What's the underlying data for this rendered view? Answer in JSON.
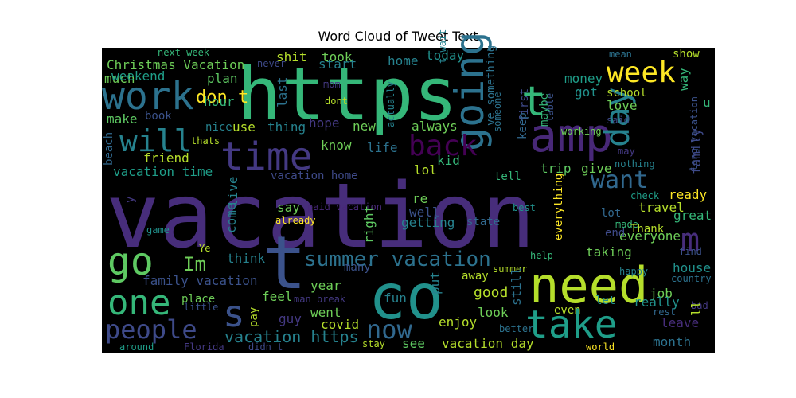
{
  "chart_data": {
    "type": "wordcloud",
    "title": "Word Cloud of Tweet Text",
    "background": "#000000",
    "palette": "viridis",
    "words": [
      {
        "text": "vacation",
        "color": "#472d7b"
      },
      {
        "text": "https",
        "color": "#35b779"
      },
      {
        "text": "t",
        "color": "#3b528b"
      },
      {
        "text": "co",
        "color": "#21918c"
      },
      {
        "text": "need",
        "color": "#b5de2b"
      },
      {
        "text": "amp",
        "color": "#482878"
      },
      {
        "text": "going",
        "color": "#2c728e"
      },
      {
        "text": "time",
        "color": "#443983"
      },
      {
        "text": "work",
        "color": "#2c728e"
      },
      {
        "text": "take",
        "color": "#1f9e89"
      },
      {
        "text": "go",
        "color": "#5ec962"
      },
      {
        "text": "one",
        "color": "#35b779"
      },
      {
        "text": "people",
        "color": "#3e4a89"
      },
      {
        "text": "now",
        "color": "#31688e"
      },
      {
        "text": "back",
        "color": "#440154"
      },
      {
        "text": "will",
        "color": "#26828e"
      },
      {
        "text": "week",
        "color": "#fde725"
      },
      {
        "text": "day",
        "color": "#26828e"
      },
      {
        "text": "want",
        "color": "#31688e"
      },
      {
        "text": "m",
        "color": "#472d7b"
      },
      {
        "text": "s",
        "color": "#3b528b"
      },
      {
        "text": "t",
        "color": "#35b779"
      },
      {
        "text": "Im",
        "color": "#6ece58"
      },
      {
        "text": "summer vacation",
        "color": "#2c728e"
      },
      {
        "text": "vacation https",
        "color": "#26828e"
      },
      {
        "text": "Christmas Vacation",
        "color": "#6ece58"
      },
      {
        "text": "vacation time",
        "color": "#1f9e89"
      },
      {
        "text": "family vacation",
        "color": "#3b528b"
      },
      {
        "text": "vacation home",
        "color": "#3e4a89"
      },
      {
        "text": "vacation day",
        "color": "#b5de2b"
      },
      {
        "text": "paid vacation",
        "color": "#482878"
      },
      {
        "text": "long vacation",
        "color": "#3b528b"
      },
      {
        "text": "next week",
        "color": "#35b779"
      },
      {
        "text": "don t",
        "color": "#fde725"
      },
      {
        "text": "much",
        "color": "#6ece58"
      },
      {
        "text": "weekend",
        "color": "#1f9e89"
      },
      {
        "text": "plan",
        "color": "#5ec962"
      },
      {
        "text": "hour",
        "color": "#35b779"
      },
      {
        "text": "make",
        "color": "#5ec962"
      },
      {
        "text": "book",
        "color": "#3b528b"
      },
      {
        "text": "friend",
        "color": "#b5de2b"
      },
      {
        "text": "beach",
        "color": "#31688e"
      },
      {
        "text": "thats",
        "color": "#b5de2b"
      },
      {
        "text": "nice",
        "color": "#26828e"
      },
      {
        "text": "use",
        "color": "#b5de2b"
      },
      {
        "text": "shit",
        "color": "#b5de2b"
      },
      {
        "text": "never",
        "color": "#3e4a89"
      },
      {
        "text": "took",
        "color": "#6ece58"
      },
      {
        "text": "start",
        "color": "#26828e"
      },
      {
        "text": "mom",
        "color": "#443983"
      },
      {
        "text": "last",
        "color": "#2c728e"
      },
      {
        "text": "dont",
        "color": "#b5de2b"
      },
      {
        "text": "thing",
        "color": "#26828e"
      },
      {
        "text": "hope",
        "color": "#443983"
      },
      {
        "text": "new",
        "color": "#6ece58"
      },
      {
        "text": "home",
        "color": "#26828e"
      },
      {
        "text": "today",
        "color": "#21918c"
      },
      {
        "text": "know",
        "color": "#6ece58"
      },
      {
        "text": "life",
        "color": "#2c728e"
      },
      {
        "text": "kid",
        "color": "#35b779"
      },
      {
        "text": "lol",
        "color": "#b5de2b"
      },
      {
        "text": "always",
        "color": "#6ece58"
      },
      {
        "text": "actually",
        "color": "#26828e"
      },
      {
        "text": "t wait",
        "color": "#26828e"
      },
      {
        "text": "ve something",
        "color": "#2c728e"
      },
      {
        "text": "someone",
        "color": "#2c728e"
      },
      {
        "text": "first",
        "color": "#3e4a89"
      },
      {
        "text": "keep",
        "color": "#31688e"
      },
      {
        "text": "maybe",
        "color": "#35b779"
      },
      {
        "text": "table",
        "color": "#3b528b"
      },
      {
        "text": "got",
        "color": "#21918c"
      },
      {
        "text": "money",
        "color": "#1f9e89"
      },
      {
        "text": "mean",
        "color": "#2c728e"
      },
      {
        "text": "show",
        "color": "#b5de2b"
      },
      {
        "text": "school",
        "color": "#b5de2b"
      },
      {
        "text": "love",
        "color": "#6ece58"
      },
      {
        "text": "said",
        "color": "#3e4a89"
      },
      {
        "text": "way",
        "color": "#35b779"
      },
      {
        "text": "u",
        "color": "#35b779"
      },
      {
        "text": "family",
        "color": "#3e4a89"
      },
      {
        "text": "working",
        "color": "#6ece58"
      },
      {
        "text": "nothing",
        "color": "#26828e"
      },
      {
        "text": "may",
        "color": "#443983"
      },
      {
        "text": "tell",
        "color": "#35b779"
      },
      {
        "text": "trip",
        "color": "#5ec962"
      },
      {
        "text": "give",
        "color": "#6ece58"
      },
      {
        "text": "check",
        "color": "#1f9e89"
      },
      {
        "text": "ready",
        "color": "#fde725"
      },
      {
        "text": "travel",
        "color": "#b5de2b"
      },
      {
        "text": "great",
        "color": "#35b779"
      },
      {
        "text": "lot",
        "color": "#31688e"
      },
      {
        "text": "made",
        "color": "#35b779"
      },
      {
        "text": "Thank",
        "color": "#b5de2b"
      },
      {
        "text": "everyone",
        "color": "#6ece58"
      },
      {
        "text": "end",
        "color": "#3e4a89"
      },
      {
        "text": "best",
        "color": "#21918c"
      },
      {
        "text": "everything",
        "color": "#fde725"
      },
      {
        "text": "state",
        "color": "#31688e"
      },
      {
        "text": "re",
        "color": "#6ece58"
      },
      {
        "text": "well",
        "color": "#3b528b"
      },
      {
        "text": "getting",
        "color": "#26828e"
      },
      {
        "text": "right",
        "color": "#5ec962"
      },
      {
        "text": "say",
        "color": "#6ece58"
      },
      {
        "text": "already",
        "color": "#fde725"
      },
      {
        "text": "live",
        "color": "#26828e"
      },
      {
        "text": "come",
        "color": "#26828e"
      },
      {
        "text": "game",
        "color": "#21918c"
      },
      {
        "text": "y",
        "color": "#443983"
      },
      {
        "text": "Ye",
        "color": "#b5de2b"
      },
      {
        "text": "think",
        "color": "#26828e"
      },
      {
        "text": "year",
        "color": "#6ece58"
      },
      {
        "text": "many",
        "color": "#3b528b"
      },
      {
        "text": "feel",
        "color": "#6ece58"
      },
      {
        "text": "place",
        "color": "#6ece58"
      },
      {
        "text": "went",
        "color": "#6ece58"
      },
      {
        "text": "man break",
        "color": "#443983"
      },
      {
        "text": "fun",
        "color": "#26828e"
      },
      {
        "text": "put",
        "color": "#26828e"
      },
      {
        "text": "away",
        "color": "#b5de2b"
      },
      {
        "text": "summer",
        "color": "#b5de2b"
      },
      {
        "text": "good",
        "color": "#b5de2b"
      },
      {
        "text": "still",
        "color": "#2c728e"
      },
      {
        "text": "look",
        "color": "#6ece58"
      },
      {
        "text": "taking",
        "color": "#6ece58"
      },
      {
        "text": "help",
        "color": "#35b779"
      },
      {
        "text": "happy",
        "color": "#26828e"
      },
      {
        "text": "find",
        "color": "#3b528b"
      },
      {
        "text": "house",
        "color": "#21918c"
      },
      {
        "text": "country",
        "color": "#2c728e"
      },
      {
        "text": "job",
        "color": "#6ece58"
      },
      {
        "text": "really",
        "color": "#21918c"
      },
      {
        "text": "let",
        "color": "#21918c"
      },
      {
        "text": "even",
        "color": "#b5de2b"
      },
      {
        "text": "bad",
        "color": "#443983"
      },
      {
        "text": "rest",
        "color": "#31688e"
      },
      {
        "text": "ll",
        "color": "#b5de2b"
      },
      {
        "text": "leave",
        "color": "#472d7b"
      },
      {
        "text": "month",
        "color": "#2c728e"
      },
      {
        "text": "world",
        "color": "#fde725"
      },
      {
        "text": "better",
        "color": "#2c728e"
      },
      {
        "text": "enjoy",
        "color": "#b5de2b"
      },
      {
        "text": "see",
        "color": "#5ec962"
      },
      {
        "text": "stay",
        "color": "#b5de2b"
      },
      {
        "text": "covid",
        "color": "#b5de2b"
      },
      {
        "text": "guy",
        "color": "#443983"
      },
      {
        "text": "pay",
        "color": "#b5de2b"
      },
      {
        "text": "little",
        "color": "#3b528b"
      },
      {
        "text": "around",
        "color": "#1f9e89"
      },
      {
        "text": "Florida",
        "color": "#443983"
      },
      {
        "text": "didn t",
        "color": "#3e4a89"
      }
    ]
  }
}
